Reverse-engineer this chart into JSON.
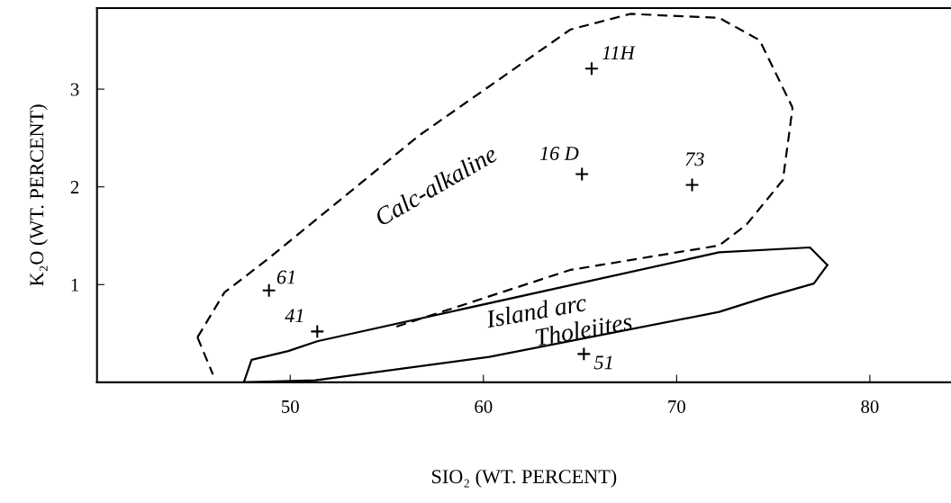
{
  "chart_data": {
    "type": "scatter",
    "xlabel": "SIO₂ (WT. PERCENT)",
    "ylabel": "K₂O (WT. PERCENT)",
    "xlim": [
      40,
      84.2
    ],
    "ylim": [
      0,
      3.83
    ],
    "xticks": [
      50,
      60,
      70,
      80
    ],
    "yticks": [
      {
        "value": 0,
        "label": null
      },
      1,
      2,
      3
    ],
    "grid": false,
    "series": [
      {
        "marker": "cross",
        "color": "#000000",
        "x": [
          65.6,
          65.1,
          70.8,
          48.9,
          51.4,
          65.2
        ],
        "values": [
          3.21,
          2.13,
          2.02,
          0.94,
          0.52,
          0.29
        ]
      },
      {
        "type": "line",
        "marker": "none",
        "line_style": "dashed",
        "color": "#000000",
        "x": [
          45.2,
          46.6,
          48.9,
          56.7,
          64.5,
          67.6,
          72.2,
          74.3,
          76.0
        ],
        "values": [
          0.46,
          0.92,
          1.27,
          2.53,
          3.61,
          3.77,
          3.73,
          3.5,
          2.81
        ]
      },
      {
        "type": "line",
        "marker": "none",
        "line_style": "dashed",
        "color": "#000000",
        "x": [
          55.5,
          64.5,
          72.2,
          73.6,
          75.5,
          76.0
        ],
        "values": [
          0.57,
          1.15,
          1.4,
          1.61,
          2.07,
          2.81
        ]
      },
      {
        "type": "line",
        "marker": "none",
        "line_style": "dashed",
        "color": "#000000",
        "x": [
          45.2,
          46.0
        ],
        "values": [
          0.46,
          0.08
        ]
      },
      {
        "type": "line",
        "marker": "none",
        "line_style": "solid",
        "color": "#000000",
        "x": [
          47.6,
          48.0,
          49.9,
          51.4,
          72.2,
          76.9,
          77.8
        ],
        "values": [
          0.0,
          0.23,
          0.32,
          0.42,
          1.33,
          1.38,
          1.2
        ]
      },
      {
        "type": "line",
        "marker": "none",
        "line_style": "solid",
        "color": "#000000",
        "x": [
          47.6,
          51.3,
          60.3,
          72.2,
          74.6,
          77.1,
          77.8
        ],
        "values": [
          0.0,
          0.02,
          0.26,
          0.72,
          0.87,
          1.01,
          1.2
        ]
      }
    ],
    "annotations": [
      {
        "text": "11H",
        "x": 65.6,
        "y": 3.21
      },
      {
        "text": "16 D",
        "x": 65.1,
        "y": 2.13
      },
      {
        "text": "73",
        "x": 70.8,
        "y": 2.02
      },
      {
        "text": "61",
        "x": 48.9,
        "y": 0.94
      },
      {
        "text": "41",
        "x": 51.4,
        "y": 0.52
      },
      {
        "text": "51",
        "x": 65.2,
        "y": 0.29
      },
      "Calc-alkaline",
      "Island arc",
      "Tholeiites"
    ]
  }
}
